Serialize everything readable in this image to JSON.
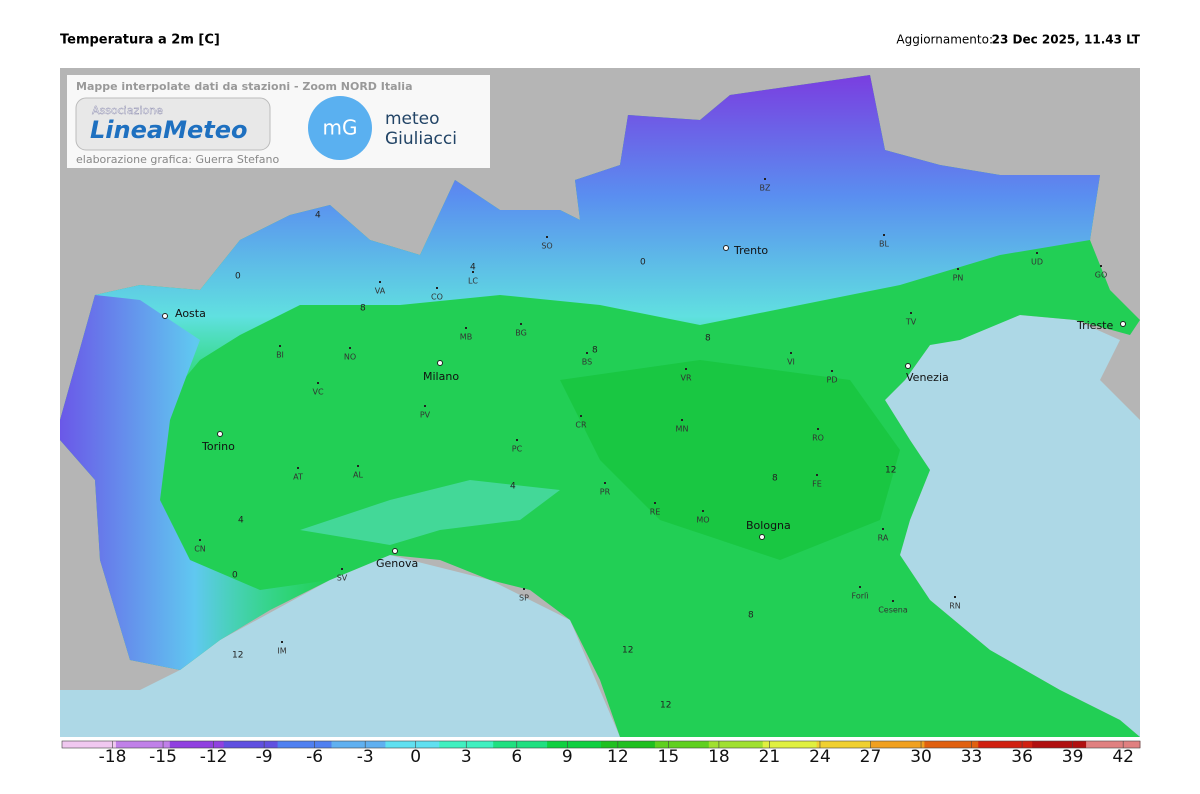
{
  "header": {
    "title": "Temperatura a 2m [C]",
    "update_label": "Aggiornamento:",
    "update_value": "23 Dec 2025, 11.43 LT"
  },
  "overlay": {
    "caption": "Mappe interpolate dati da stazioni - Zoom NORD Italia",
    "logo1_top": "Associazione",
    "logo1_main": "LineaMeteo",
    "credit": "elaborazione grafica: Guerra Stefano",
    "logo2_badge": "mG",
    "logo2_line1": "meteo",
    "logo2_line2": "Giuliacci"
  },
  "cities": [
    "Aosta",
    "Torino",
    "Milano",
    "Trento",
    "Venezia",
    "Bologna",
    "Genova",
    "Trieste"
  ],
  "provinces": [
    "BZ",
    "SO",
    "VA",
    "CO",
    "LC",
    "MB",
    "BG",
    "BS",
    "BI",
    "NO",
    "VC",
    "PV",
    "AL",
    "AT",
    "CN",
    "SV",
    "IM",
    "PC",
    "CR",
    "MN",
    "VR",
    "VI",
    "PD",
    "TV",
    "BL",
    "PN",
    "UD",
    "GO",
    "RO",
    "FE",
    "PR",
    "RE",
    "MO",
    "RA",
    "Forlì",
    "Cesena",
    "RN",
    "SP"
  ],
  "contour_labels": [
    "0",
    "4",
    "4",
    "0",
    "8",
    "8",
    "8",
    "12",
    "12",
    "12",
    "4",
    "8",
    "0",
    "4",
    "8",
    "12"
  ],
  "colorbar": {
    "range": [
      -21,
      43
    ],
    "ticks": [
      -18,
      -15,
      -12,
      -9,
      -6,
      -3,
      0,
      3,
      6,
      9,
      12,
      15,
      18,
      21,
      24,
      27,
      30,
      33,
      36,
      39,
      42
    ],
    "colors": [
      "#f0c8f0",
      "#c080e8",
      "#9040e0",
      "#6050e0",
      "#5080f0",
      "#60b0f0",
      "#60e0f0",
      "#40f0c0",
      "#20e080",
      "#10d040",
      "#20c020",
      "#60d020",
      "#a0e030",
      "#e0f040",
      "#f0d030",
      "#f0a020",
      "#e06010",
      "#d02010",
      "#b01010",
      "#e08080"
    ]
  }
}
